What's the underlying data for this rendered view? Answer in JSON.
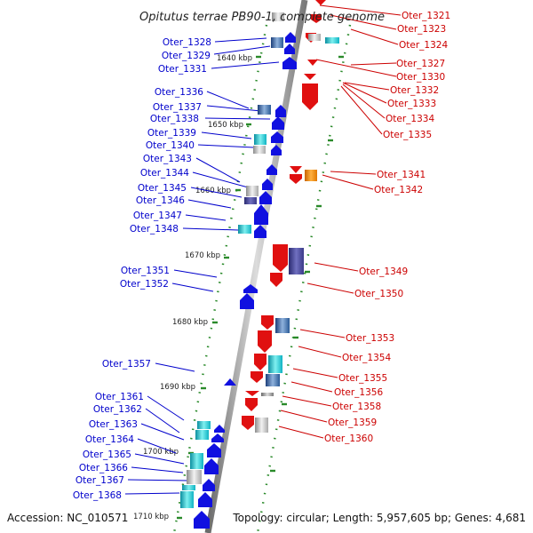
{
  "title": "Opitutus terrae PB90-1, complete genome",
  "footer": {
    "accession": "Accession: NC_010571",
    "topology": "Topology: circular; Length: 5,957,605 bp; Genes: 4,681"
  },
  "scale_labels": [
    "1640 kbp",
    "1650 kbp",
    "1660 kbp",
    "1670 kbp",
    "1680 kbp",
    "1690 kbp",
    "1700 kbp",
    "1710 kbp"
  ],
  "genes_left": [
    "Oter_1328",
    "Oter_1329",
    "Oter_1331",
    "Oter_1336",
    "Oter_1337",
    "Oter_1338",
    "Oter_1339",
    "Oter_1340",
    "Oter_1343",
    "Oter_1344",
    "Oter_1345",
    "Oter_1346",
    "Oter_1347",
    "Oter_1348",
    "Oter_1351",
    "Oter_1352",
    "Oter_1357",
    "Oter_1361",
    "Oter_1362",
    "Oter_1363",
    "Oter_1364",
    "Oter_1365",
    "Oter_1366",
    "Oter_1367",
    "Oter_1368"
  ],
  "genes_right": [
    "Oter_1321",
    "Oter_1323",
    "Oter_1324",
    "Oter_1327",
    "Oter_1330",
    "Oter_1332",
    "Oter_1333",
    "Oter_1334",
    "Oter_1335",
    "Oter_1341",
    "Oter_1342",
    "Oter_1349",
    "Oter_1350",
    "Oter_1353",
    "Oter_1354",
    "Oter_1355",
    "Oter_1356",
    "Oter_1358",
    "Oter_1359",
    "Oter_1360"
  ],
  "colors": {
    "plus_strand": "#1010e0",
    "minus_strand": "#e01010",
    "backbone": "#999999",
    "tick": "#2a8a2a"
  }
}
